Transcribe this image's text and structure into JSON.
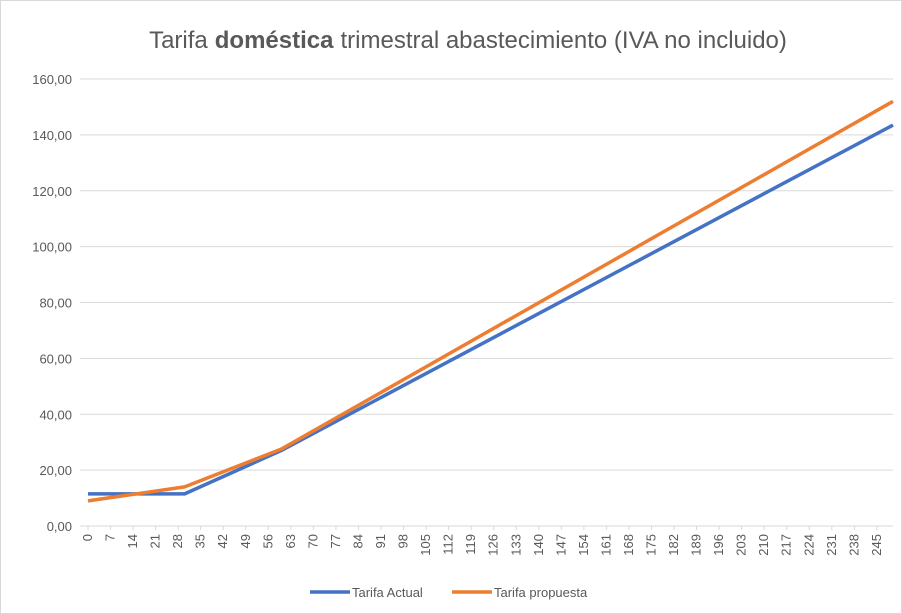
{
  "chart_data": {
    "type": "line",
    "title": [
      "Tarifa",
      "doméstica",
      "trimestral abastecimiento (IVA no incluido)"
    ],
    "xlim": [
      0,
      250
    ],
    "xticks": [
      0,
      7,
      14,
      21,
      28,
      35,
      42,
      49,
      56,
      63,
      70,
      77,
      84,
      91,
      98,
      105,
      112,
      119,
      126,
      133,
      140,
      147,
      154,
      161,
      168,
      175,
      182,
      189,
      196,
      203,
      210,
      217,
      224,
      231,
      238,
      245
    ],
    "ylim": [
      0,
      160
    ],
    "yticks": [
      {
        "value": 0,
        "label": "0,00"
      },
      {
        "value": 20,
        "label": "20,00"
      },
      {
        "value": 40,
        "label": "40,00"
      },
      {
        "value": 60,
        "label": "60,00"
      },
      {
        "value": 80,
        "label": "80,00"
      },
      {
        "value": 100,
        "label": "100,00"
      },
      {
        "value": 120,
        "label": "120,00"
      },
      {
        "value": 140,
        "label": "140,00"
      },
      {
        "value": 160,
        "label": "160,00"
      }
    ],
    "grid": true,
    "legend": "bottom",
    "series": [
      {
        "name": "Tarifa Actual",
        "color": "#4472c4",
        "x": [
          0,
          30,
          60,
          250
        ],
        "values": [
          11.5,
          11.5,
          27,
          143.5
        ]
      },
      {
        "name": "Tarifa propuesta",
        "color": "#ed7d31",
        "x": [
          0,
          30,
          60,
          250
        ],
        "values": [
          9,
          14,
          27.5,
          152
        ]
      }
    ]
  }
}
